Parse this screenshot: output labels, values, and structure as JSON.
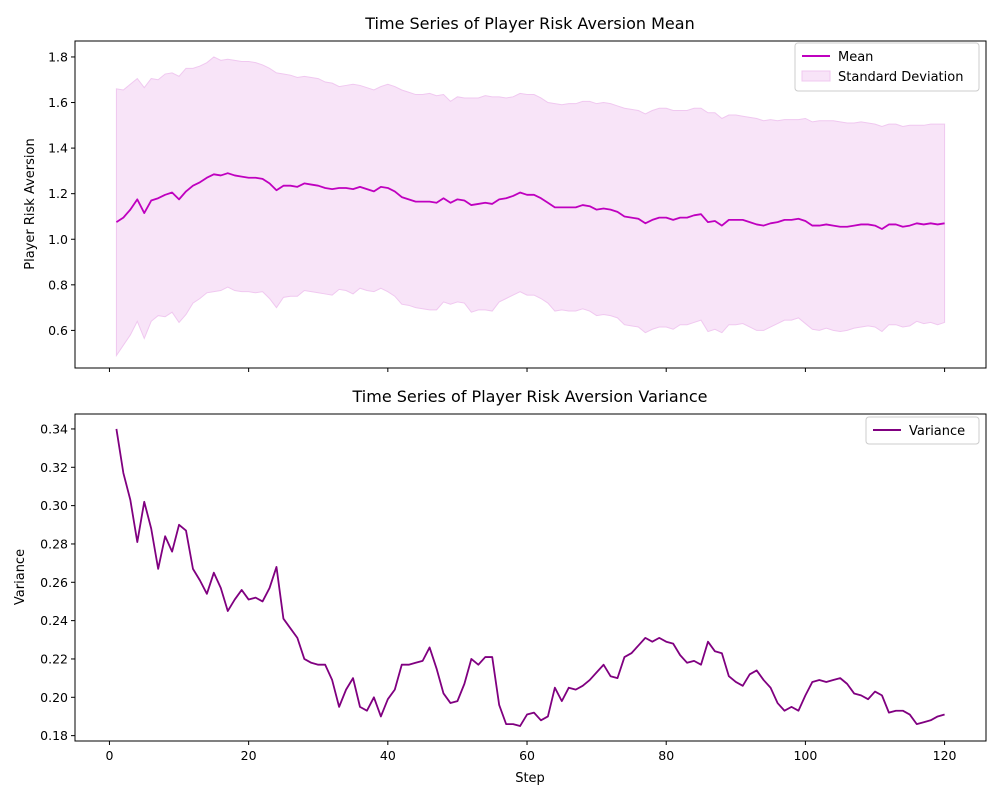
{
  "colors": {
    "mean": "#bf00bf",
    "std_fill": "#f8e4f8",
    "std_edge": "#f0c8f0",
    "variance": "#800080"
  },
  "chart_data": [
    {
      "type": "line",
      "title": "Time Series of Player Risk Aversion Mean",
      "xlabel": "",
      "ylabel": "Player Risk Aversion",
      "xlim": [
        -4.95,
        125.95
      ],
      "ylim": [
        0.435,
        1.87
      ],
      "xticks": [
        0,
        20,
        40,
        60,
        80,
        100,
        120
      ],
      "xtick_labels_visible": false,
      "yticks": [
        0.6,
        0.8,
        1.0,
        1.2,
        1.4,
        1.6,
        1.8
      ],
      "ytick_labels": [
        "0.6",
        "0.8",
        "1.0",
        "1.2",
        "1.4",
        "1.6",
        "1.8"
      ],
      "legend_position": "top-right",
      "legend": [
        "Mean",
        "Standard Deviation"
      ],
      "x": [
        1,
        2,
        3,
        4,
        5,
        6,
        7,
        8,
        9,
        10,
        11,
        12,
        13,
        14,
        15,
        16,
        17,
        18,
        19,
        20,
        21,
        22,
        23,
        24,
        25,
        26,
        27,
        28,
        29,
        30,
        31,
        32,
        33,
        34,
        35,
        36,
        37,
        38,
        39,
        40,
        41,
        42,
        43,
        44,
        45,
        46,
        47,
        48,
        49,
        50,
        51,
        52,
        53,
        54,
        55,
        56,
        57,
        58,
        59,
        60,
        61,
        62,
        63,
        64,
        65,
        66,
        67,
        68,
        69,
        70,
        71,
        72,
        73,
        74,
        75,
        76,
        77,
        78,
        79,
        80,
        81,
        82,
        83,
        84,
        85,
        86,
        87,
        88,
        89,
        90,
        91,
        92,
        93,
        94,
        95,
        96,
        97,
        98,
        99,
        100,
        101,
        102,
        103,
        104,
        105,
        106,
        107,
        108,
        109,
        110,
        111,
        112,
        113,
        114,
        115,
        116,
        117,
        118,
        119,
        120
      ],
      "series": [
        {
          "name": "Mean",
          "values": [
            1.075,
            1.095,
            1.13,
            1.175,
            1.115,
            1.17,
            1.18,
            1.195,
            1.205,
            1.175,
            1.21,
            1.235,
            1.25,
            1.27,
            1.285,
            1.28,
            1.29,
            1.28,
            1.275,
            1.27,
            1.27,
            1.265,
            1.245,
            1.215,
            1.235,
            1.235,
            1.23,
            1.245,
            1.24,
            1.235,
            1.225,
            1.22,
            1.225,
            1.225,
            1.22,
            1.23,
            1.22,
            1.21,
            1.23,
            1.225,
            1.21,
            1.185,
            1.175,
            1.165,
            1.165,
            1.165,
            1.16,
            1.18,
            1.16,
            1.175,
            1.17,
            1.15,
            1.155,
            1.16,
            1.155,
            1.175,
            1.18,
            1.19,
            1.205,
            1.195,
            1.195,
            1.18,
            1.16,
            1.14,
            1.14,
            1.14,
            1.14,
            1.15,
            1.145,
            1.13,
            1.135,
            1.13,
            1.12,
            1.1,
            1.095,
            1.09,
            1.07,
            1.085,
            1.095,
            1.095,
            1.085,
            1.095,
            1.095,
            1.105,
            1.11,
            1.075,
            1.08,
            1.06,
            1.085,
            1.085,
            1.085,
            1.075,
            1.065,
            1.06,
            1.07,
            1.075,
            1.085,
            1.085,
            1.09,
            1.08,
            1.06,
            1.06,
            1.065,
            1.06,
            1.055,
            1.055,
            1.06,
            1.065,
            1.065,
            1.06,
            1.045,
            1.065,
            1.065,
            1.055,
            1.06,
            1.07,
            1.065,
            1.07,
            1.065,
            1.07
          ]
        },
        {
          "name": "Standard Deviation",
          "lower": [
            0.49,
            0.535,
            0.58,
            0.64,
            0.565,
            0.64,
            0.665,
            0.66,
            0.68,
            0.635,
            0.67,
            0.72,
            0.74,
            0.765,
            0.77,
            0.775,
            0.79,
            0.775,
            0.77,
            0.77,
            0.765,
            0.77,
            0.74,
            0.7,
            0.745,
            0.75,
            0.75,
            0.775,
            0.77,
            0.765,
            0.76,
            0.755,
            0.78,
            0.775,
            0.76,
            0.785,
            0.775,
            0.77,
            0.785,
            0.77,
            0.75,
            0.715,
            0.71,
            0.7,
            0.695,
            0.69,
            0.69,
            0.725,
            0.715,
            0.725,
            0.72,
            0.68,
            0.69,
            0.69,
            0.685,
            0.725,
            0.74,
            0.755,
            0.77,
            0.755,
            0.755,
            0.74,
            0.72,
            0.685,
            0.69,
            0.685,
            0.685,
            0.695,
            0.685,
            0.665,
            0.67,
            0.665,
            0.655,
            0.625,
            0.62,
            0.615,
            0.59,
            0.605,
            0.615,
            0.615,
            0.605,
            0.625,
            0.625,
            0.635,
            0.645,
            0.595,
            0.605,
            0.59,
            0.625,
            0.625,
            0.63,
            0.615,
            0.6,
            0.6,
            0.615,
            0.63,
            0.645,
            0.645,
            0.655,
            0.63,
            0.605,
            0.6,
            0.61,
            0.6,
            0.595,
            0.6,
            0.61,
            0.615,
            0.62,
            0.615,
            0.595,
            0.625,
            0.625,
            0.615,
            0.62,
            0.64,
            0.63,
            0.635,
            0.625,
            0.635
          ],
          "upper": [
            1.66,
            1.655,
            1.68,
            1.705,
            1.665,
            1.705,
            1.7,
            1.725,
            1.73,
            1.715,
            1.75,
            1.75,
            1.76,
            1.775,
            1.8,
            1.785,
            1.79,
            1.785,
            1.78,
            1.78,
            1.775,
            1.765,
            1.75,
            1.73,
            1.725,
            1.72,
            1.71,
            1.715,
            1.71,
            1.705,
            1.69,
            1.685,
            1.67,
            1.675,
            1.68,
            1.675,
            1.665,
            1.655,
            1.67,
            1.68,
            1.67,
            1.655,
            1.645,
            1.635,
            1.635,
            1.64,
            1.63,
            1.635,
            1.605,
            1.625,
            1.62,
            1.62,
            1.62,
            1.63,
            1.625,
            1.625,
            1.62,
            1.625,
            1.64,
            1.635,
            1.635,
            1.62,
            1.6,
            1.595,
            1.59,
            1.595,
            1.595,
            1.605,
            1.605,
            1.595,
            1.6,
            1.595,
            1.585,
            1.575,
            1.57,
            1.565,
            1.55,
            1.565,
            1.575,
            1.575,
            1.565,
            1.565,
            1.565,
            1.575,
            1.575,
            1.555,
            1.555,
            1.53,
            1.545,
            1.545,
            1.54,
            1.535,
            1.53,
            1.52,
            1.525,
            1.52,
            1.525,
            1.525,
            1.525,
            1.53,
            1.515,
            1.52,
            1.52,
            1.52,
            1.515,
            1.51,
            1.51,
            1.515,
            1.51,
            1.505,
            1.495,
            1.505,
            1.505,
            1.495,
            1.5,
            1.5,
            1.5,
            1.505,
            1.505,
            1.505
          ]
        }
      ]
    },
    {
      "type": "line",
      "title": "Time Series of Player Risk Aversion Variance",
      "xlabel": "Step",
      "ylabel": "Variance",
      "xlim": [
        -4.95,
        125.95
      ],
      "ylim": [
        0.1772,
        0.3478
      ],
      "xticks": [
        0,
        20,
        40,
        60,
        80,
        100,
        120
      ],
      "xtick_labels": [
        "0",
        "20",
        "40",
        "60",
        "80",
        "100",
        "120"
      ],
      "yticks": [
        0.18,
        0.2,
        0.22,
        0.24,
        0.26,
        0.28,
        0.3,
        0.32,
        0.34
      ],
      "ytick_labels": [
        "0.18",
        "0.20",
        "0.22",
        "0.24",
        "0.26",
        "0.28",
        "0.30",
        "0.32",
        "0.34"
      ],
      "legend_position": "top-right",
      "legend": [
        "Variance"
      ],
      "x": [
        1,
        2,
        3,
        4,
        5,
        6,
        7,
        8,
        9,
        10,
        11,
        12,
        13,
        14,
        15,
        16,
        17,
        18,
        19,
        20,
        21,
        22,
        23,
        24,
        25,
        26,
        27,
        28,
        29,
        30,
        31,
        32,
        33,
        34,
        35,
        36,
        37,
        38,
        39,
        40,
        41,
        42,
        43,
        44,
        45,
        46,
        47,
        48,
        49,
        50,
        51,
        52,
        53,
        54,
        55,
        56,
        57,
        58,
        59,
        60,
        61,
        62,
        63,
        64,
        65,
        66,
        67,
        68,
        69,
        70,
        71,
        72,
        73,
        74,
        75,
        76,
        77,
        78,
        79,
        80,
        81,
        82,
        83,
        84,
        85,
        86,
        87,
        88,
        89,
        90,
        91,
        92,
        93,
        94,
        95,
        96,
        97,
        98,
        99,
        100,
        101,
        102,
        103,
        104,
        105,
        106,
        107,
        108,
        109,
        110,
        111,
        112,
        113,
        114,
        115,
        116,
        117,
        118,
        119,
        120
      ],
      "series": [
        {
          "name": "Variance",
          "values": [
            0.34,
            0.317,
            0.303,
            0.281,
            0.302,
            0.288,
            0.267,
            0.284,
            0.276,
            0.29,
            0.287,
            0.267,
            0.261,
            0.254,
            0.265,
            0.257,
            0.245,
            0.251,
            0.256,
            0.251,
            0.252,
            0.25,
            0.257,
            0.268,
            0.241,
            0.236,
            0.231,
            0.22,
            0.218,
            0.217,
            0.217,
            0.209,
            0.195,
            0.204,
            0.21,
            0.195,
            0.193,
            0.2,
            0.19,
            0.199,
            0.204,
            0.217,
            0.217,
            0.218,
            0.219,
            0.226,
            0.215,
            0.202,
            0.197,
            0.198,
            0.207,
            0.22,
            0.217,
            0.221,
            0.221,
            0.196,
            0.186,
            0.186,
            0.185,
            0.191,
            0.192,
            0.188,
            0.19,
            0.205,
            0.198,
            0.205,
            0.204,
            0.206,
            0.209,
            0.213,
            0.217,
            0.211,
            0.21,
            0.221,
            0.223,
            0.227,
            0.231,
            0.229,
            0.231,
            0.229,
            0.228,
            0.222,
            0.218,
            0.219,
            0.217,
            0.229,
            0.224,
            0.223,
            0.211,
            0.208,
            0.206,
            0.212,
            0.214,
            0.209,
            0.205,
            0.197,
            0.193,
            0.195,
            0.193,
            0.201,
            0.208,
            0.209,
            0.208,
            0.209,
            0.21,
            0.207,
            0.202,
            0.201,
            0.199,
            0.203,
            0.201,
            0.192,
            0.193,
            0.193,
            0.191,
            0.186,
            0.187,
            0.188,
            0.19,
            0.191
          ]
        }
      ]
    }
  ]
}
